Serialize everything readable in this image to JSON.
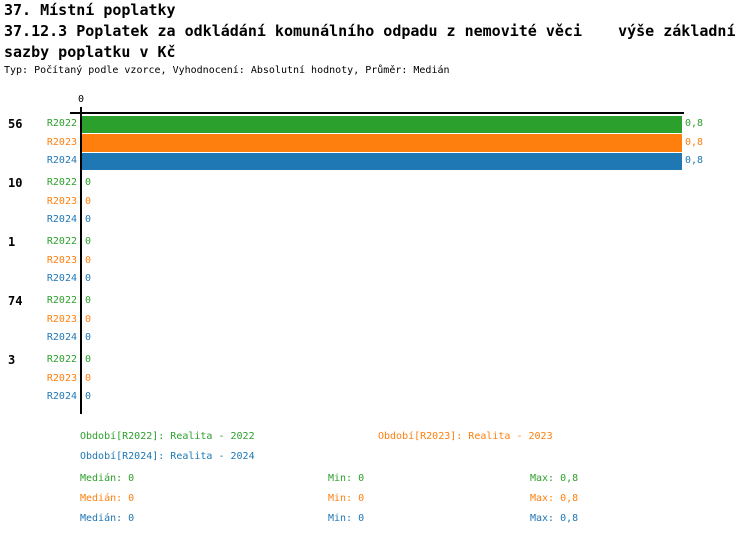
{
  "header": {
    "line1": "37. Místní poplatky",
    "line2": "37.12.3 Poplatek za odkládání komunálního odpadu z nemovité věci    výše základní",
    "line3": "sazby poplatku v Kč",
    "meta": "Typ: Počítaný podle vzorce, Vyhodnocení: Absolutní hodnoty, Průměr: Medián"
  },
  "colors": {
    "r2022_green": "#2ca02c",
    "r2023_orange": "#ff7f0e",
    "r2024_blue": "#1f77b4",
    "axis_black": "#000000",
    "background": "#ffffff"
  },
  "chart_data": {
    "type": "bar",
    "orientation": "horizontal-grouped",
    "value_axis": {
      "position": "top",
      "tick_labels": [
        "0"
      ],
      "min": 0,
      "max": 0.8
    },
    "series": [
      "R2022",
      "R2023",
      "R2024"
    ],
    "series_colors": [
      "#2ca02c",
      "#ff7f0e",
      "#1f77b4"
    ],
    "groups": [
      {
        "label": "56",
        "values": [
          0.8,
          0.8,
          0.8
        ],
        "value_labels": [
          "0,8",
          "0,8",
          "0,8"
        ]
      },
      {
        "label": "10",
        "values": [
          0,
          0,
          0
        ],
        "value_labels": [
          "0",
          "0",
          "0"
        ]
      },
      {
        "label": "1",
        "values": [
          0,
          0,
          0
        ],
        "value_labels": [
          "0",
          "0",
          "0"
        ]
      },
      {
        "label": "74",
        "values": [
          0,
          0,
          0
        ],
        "value_labels": [
          "0",
          "0",
          "0"
        ]
      },
      {
        "label": "3",
        "values": [
          0,
          0,
          0
        ],
        "value_labels": [
          "0",
          "0",
          "0"
        ]
      }
    ]
  },
  "legend": {
    "items": [
      {
        "series": "R2022",
        "label": "Období[R2022]: Realita - 2022"
      },
      {
        "series": "R2023",
        "label": "Období[R2023]: Realita - 2023"
      },
      {
        "series": "R2024",
        "label": "Období[R2024]: Realita - 2024"
      }
    ]
  },
  "stats": {
    "rows": [
      {
        "series": "R2022",
        "median": "Medián: 0",
        "min": "Min: 0",
        "max": "Max: 0,8"
      },
      {
        "series": "R2023",
        "median": "Medián: 0",
        "min": "Min: 0",
        "max": "Max: 0,8"
      },
      {
        "series": "R2024",
        "median": "Medián: 0",
        "min": "Min: 0",
        "max": "Max: 0,8"
      }
    ]
  }
}
